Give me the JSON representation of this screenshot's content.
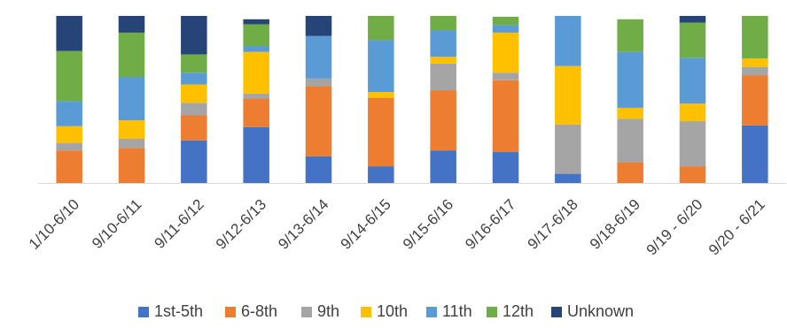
{
  "chart_data": {
    "type": "bar",
    "stacked": true,
    "normalized_percent": true,
    "title": "",
    "xlabel": "",
    "ylabel": "",
    "ylim": [
      0,
      100
    ],
    "grid": false,
    "legend_position": "bottom",
    "categories": [
      "1/10-6/10",
      "9/10-6/11",
      "9/11-6/12",
      "9/12-6/13",
      "9/13-6/14",
      "9/14-6/15",
      "9/15-6/16",
      "9/16-6/17",
      "9/17-6/18",
      "9/18-6/19",
      "9/19 - 6/20",
      "9/20 - 6/21"
    ],
    "series": [
      {
        "name": "1st-5th",
        "color": "#4472C4",
        "values": [
          0,
          0,
          25.5,
          33.5,
          16,
          10,
          19.5,
          18.5,
          5.5,
          0,
          0,
          34.5
        ]
      },
      {
        "name": "6-8th",
        "color": "#ED7D31",
        "values": [
          19.5,
          21,
          15,
          17,
          42,
          41,
          36,
          43,
          0,
          12.5,
          10,
          30
        ]
      },
      {
        "name": "9th",
        "color": "#A5A5A5",
        "values": [
          4.5,
          5.5,
          7.5,
          3,
          4.5,
          0,
          16,
          4.5,
          29.5,
          26,
          27,
          5
        ]
      },
      {
        "name": "10th",
        "color": "#FFC000",
        "values": [
          10,
          11,
          11,
          25,
          0,
          3.5,
          4,
          24,
          35,
          6.5,
          10.5,
          5
        ]
      },
      {
        "name": "11th",
        "color": "#5B9BD5",
        "values": [
          15,
          26,
          7,
          3.5,
          25.5,
          31,
          16,
          4.5,
          30,
          33.5,
          27.5,
          0
        ]
      },
      {
        "name": "12th",
        "color": "#70AD47",
        "values": [
          30,
          26.5,
          11,
          13,
          0,
          14.5,
          8.5,
          5,
          0,
          19.5,
          21,
          25.5
        ]
      },
      {
        "name": "Unknown",
        "color": "#264478",
        "values": [
          21,
          10,
          23,
          3,
          12,
          0,
          0,
          0,
          0,
          0,
          4,
          0
        ]
      }
    ]
  }
}
